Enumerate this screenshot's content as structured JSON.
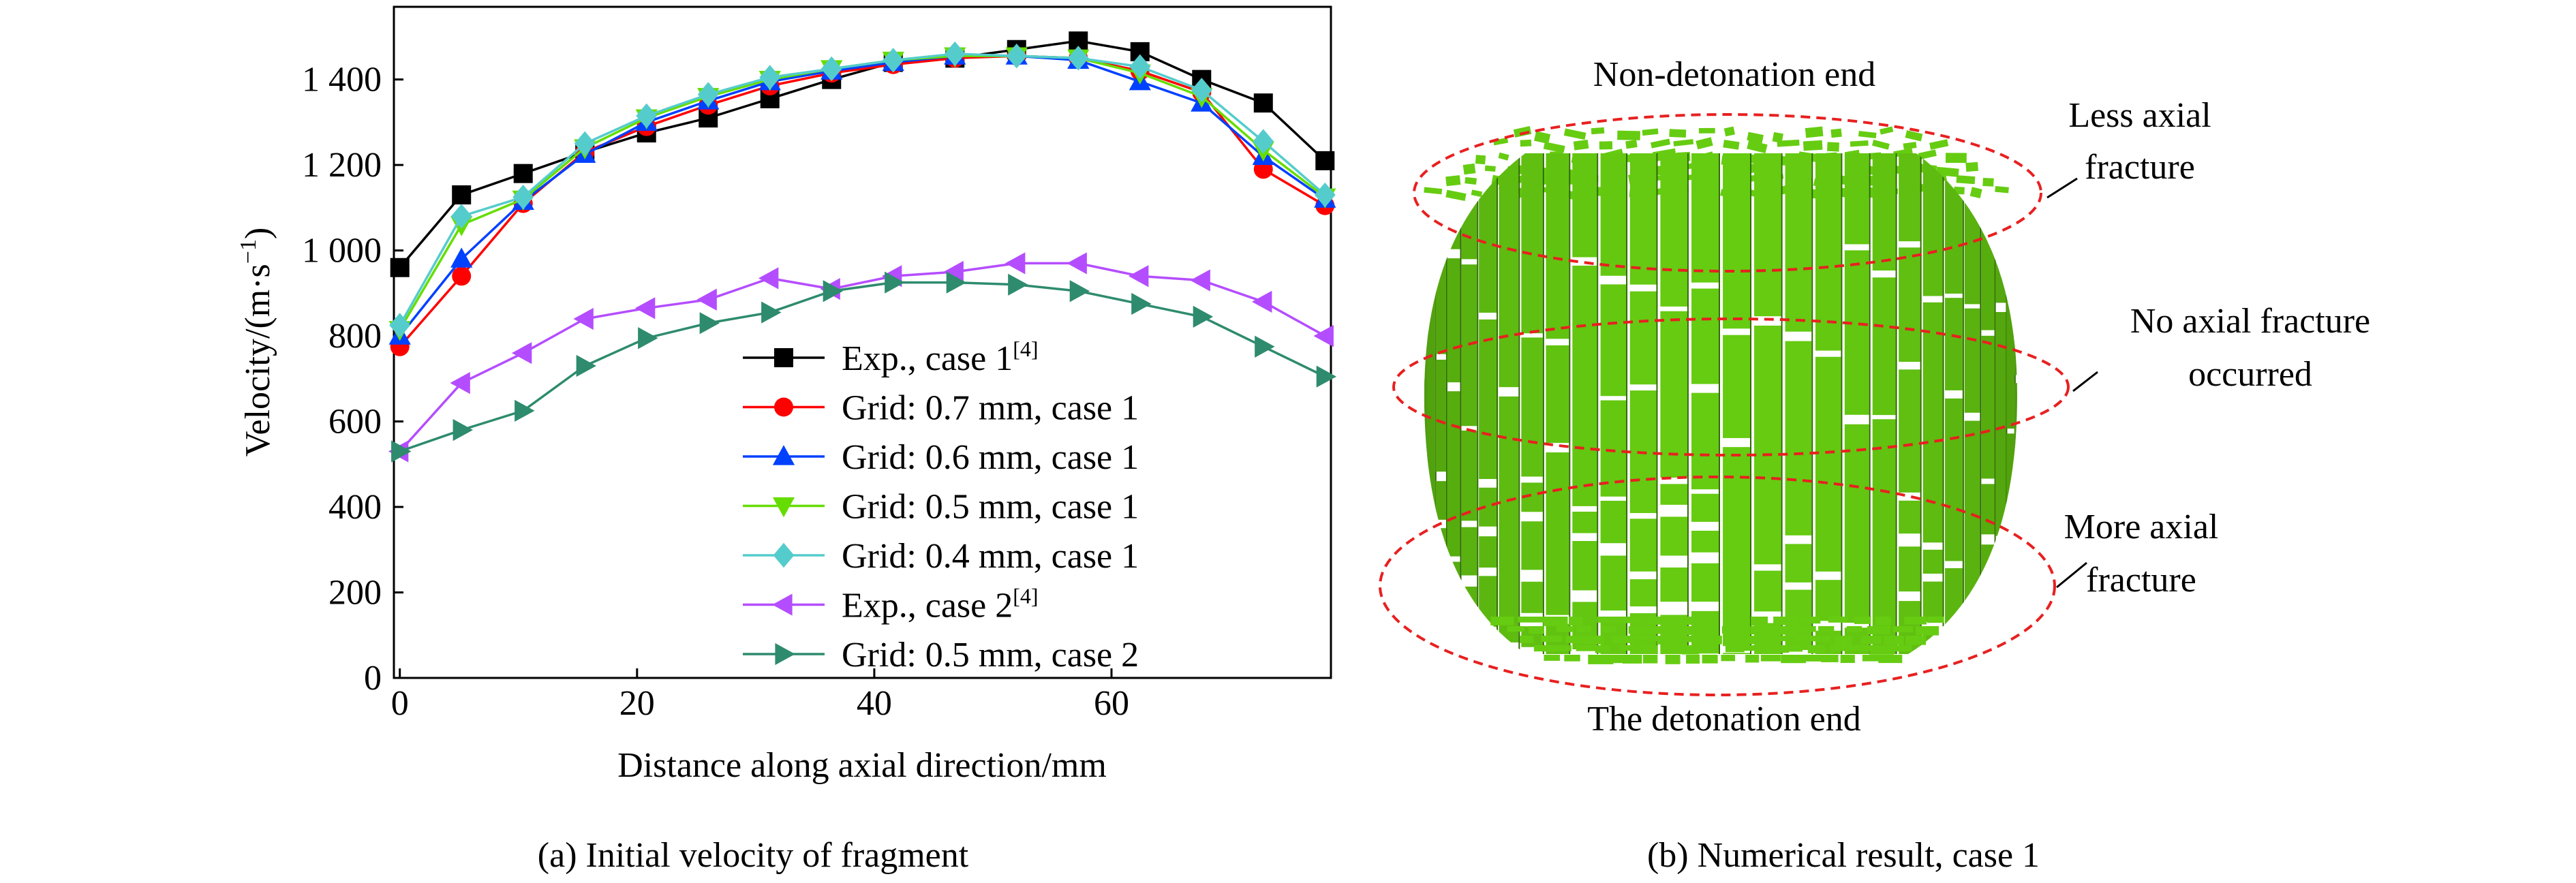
{
  "chart_data": {
    "type": "line",
    "title": "",
    "xlabel": "Distance along axial direction/mm",
    "ylabel": "Velocity/(m·s",
    "ylabel_sup": "−1",
    "ylabel_close": ")",
    "xlim": [
      -0.5,
      78.5
    ],
    "ylim": [
      0,
      1570
    ],
    "x_ticks": [
      0,
      20,
      40,
      60
    ],
    "x_tick_labels": [
      "0",
      "20",
      "40",
      "60"
    ],
    "y_ticks": [
      0,
      200,
      400,
      600,
      800,
      1000,
      1200,
      1400
    ],
    "y_tick_labels": [
      "0",
      "200",
      "400",
      "600",
      "800",
      "1 000",
      "1 200",
      "1 400"
    ],
    "legend_position": "bottom-right",
    "caption": "(a) Initial velocity of fragment",
    "x": [
      0,
      5.2,
      10.4,
      15.6,
      20.8,
      26,
      31.2,
      36.4,
      41.6,
      46.8,
      52,
      57.2,
      62.4,
      67.6,
      72.8,
      78
    ],
    "series": [
      {
        "name": "Exp., case 1",
        "ref": "[4]",
        "color": "#000000",
        "marker": "square",
        "values": [
          960,
          1130,
          1180,
          1230,
          1275,
          1310,
          1355,
          1400,
          1440,
          1450,
          1470,
          1490,
          1465,
          1400,
          1345,
          1210
        ]
      },
      {
        "name": "Grid: 0.7 mm, case 1",
        "ref": "",
        "color": "#ff0000",
        "marker": "circle",
        "values": [
          775,
          940,
          1110,
          1230,
          1290,
          1340,
          1385,
          1415,
          1435,
          1450,
          1455,
          1450,
          1420,
          1370,
          1190,
          1105
        ]
      },
      {
        "name": "Grid: 0.6 mm, case 1",
        "ref": "",
        "color": "#0040ff",
        "marker": "triangle-up",
        "values": [
          800,
          980,
          1115,
          1225,
          1300,
          1350,
          1395,
          1420,
          1440,
          1455,
          1455,
          1445,
          1395,
          1345,
          1220,
          1120
        ]
      },
      {
        "name": "Grid: 0.5 mm, case 1",
        "ref": "",
        "color": "#66dd00",
        "marker": "triangle-down",
        "values": [
          815,
          1060,
          1120,
          1240,
          1310,
          1360,
          1400,
          1425,
          1445,
          1455,
          1455,
          1450,
          1415,
          1360,
          1235,
          1125
        ]
      },
      {
        "name": "Grid: 0.4 mm, case 1",
        "ref": "",
        "color": "#55cccc",
        "marker": "diamond",
        "values": [
          825,
          1080,
          1125,
          1250,
          1315,
          1365,
          1405,
          1425,
          1445,
          1460,
          1455,
          1450,
          1430,
          1375,
          1255,
          1130
        ]
      },
      {
        "name": "Exp., case 2",
        "ref": "[4]",
        "color": "#b44dff",
        "marker": "triangle-left",
        "values": [
          530,
          690,
          760,
          840,
          865,
          885,
          935,
          910,
          940,
          950,
          970,
          970,
          940,
          930,
          880,
          800
        ]
      },
      {
        "name": "Grid: 0.5 mm, case 2",
        "ref": "",
        "color": "#2e8b6e",
        "marker": "triangle-right",
        "values": [
          530,
          580,
          625,
          730,
          795,
          830,
          855,
          905,
          925,
          925,
          920,
          905,
          875,
          845,
          775,
          705
        ]
      }
    ]
  },
  "panel_b": {
    "caption": "(b) Numerical result, case 1",
    "labels": {
      "top": "Non-detonation end",
      "bottom": "The detonation end",
      "less_1": "Less axial",
      "less_2": "fracture",
      "no_1": "No axial fracture",
      "no_2": "occurred",
      "more_1": "More axial",
      "more_2": "fracture"
    },
    "fragment_color": "#66cc11",
    "ellipse_color": "#e82020"
  }
}
